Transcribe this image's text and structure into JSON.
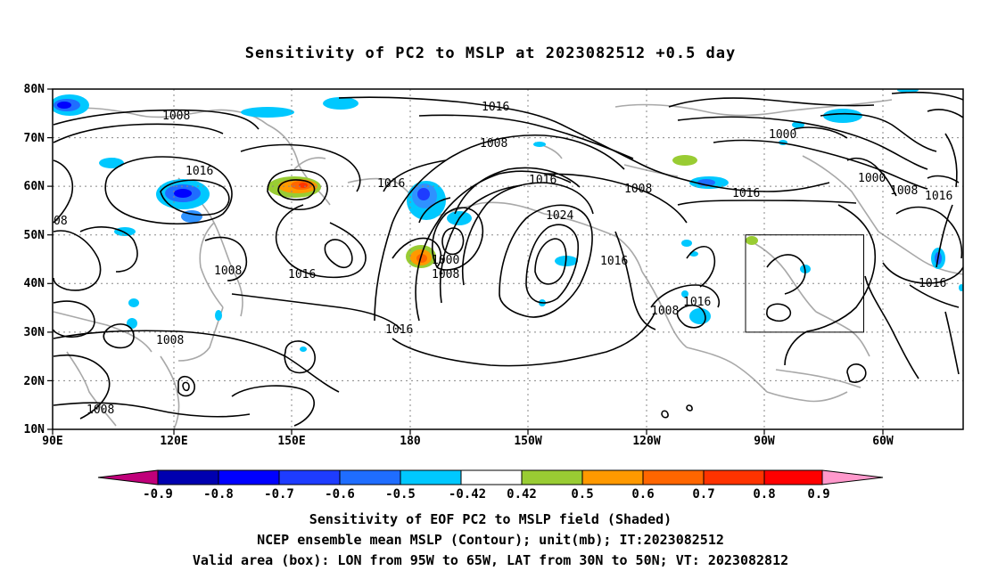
{
  "title": "Sensitivity of PC2 to MSLP at 2023082512 +0.5 day",
  "lat_labels": [
    "80N",
    "70N",
    "60N",
    "50N",
    "40N",
    "30N",
    "20N",
    "10N"
  ],
  "lon_labels": [
    "90E",
    "120E",
    "150E",
    "180",
    "150W",
    "120W",
    "90W",
    "60W"
  ],
  "colorbar": {
    "labels": [
      "-0.9",
      "-0.8",
      "-0.7",
      "-0.6",
      "-0.5",
      "-0.42",
      "0.42",
      "0.5",
      "0.6",
      "0.7",
      "0.8",
      "0.9"
    ],
    "colors": [
      "#c0007a",
      "#0000b0",
      "#0000ff",
      "#1e3cff",
      "#1f6dff",
      "#2f92ff",
      "#00c8ff",
      "#ffffff",
      "#99cc33",
      "#ff9900",
      "#ff6600",
      "#ff3300",
      "#ff0000",
      "#ff99cc"
    ]
  },
  "contour_labels": [
    "1008",
    "1016",
    "1016",
    "1008",
    "08",
    "1008",
    "1016",
    "1008",
    "1008",
    "1016",
    "1000",
    "1008",
    "1016",
    "1024",
    "1016",
    "1008",
    "1016",
    "1016",
    "1000",
    "1000",
    "1008",
    "1016",
    "1016",
    "1008"
  ],
  "captions": {
    "line1": "Sensitivity of EOF PC2 to MSLP field (Shaded)",
    "line2": "NCEP ensemble mean MSLP (Contour); unit(mb); IT:2023082512",
    "line3": "Valid area (box): LON from 95W to 65W, LAT from 30N to 50N; VT: 2023082812"
  }
}
